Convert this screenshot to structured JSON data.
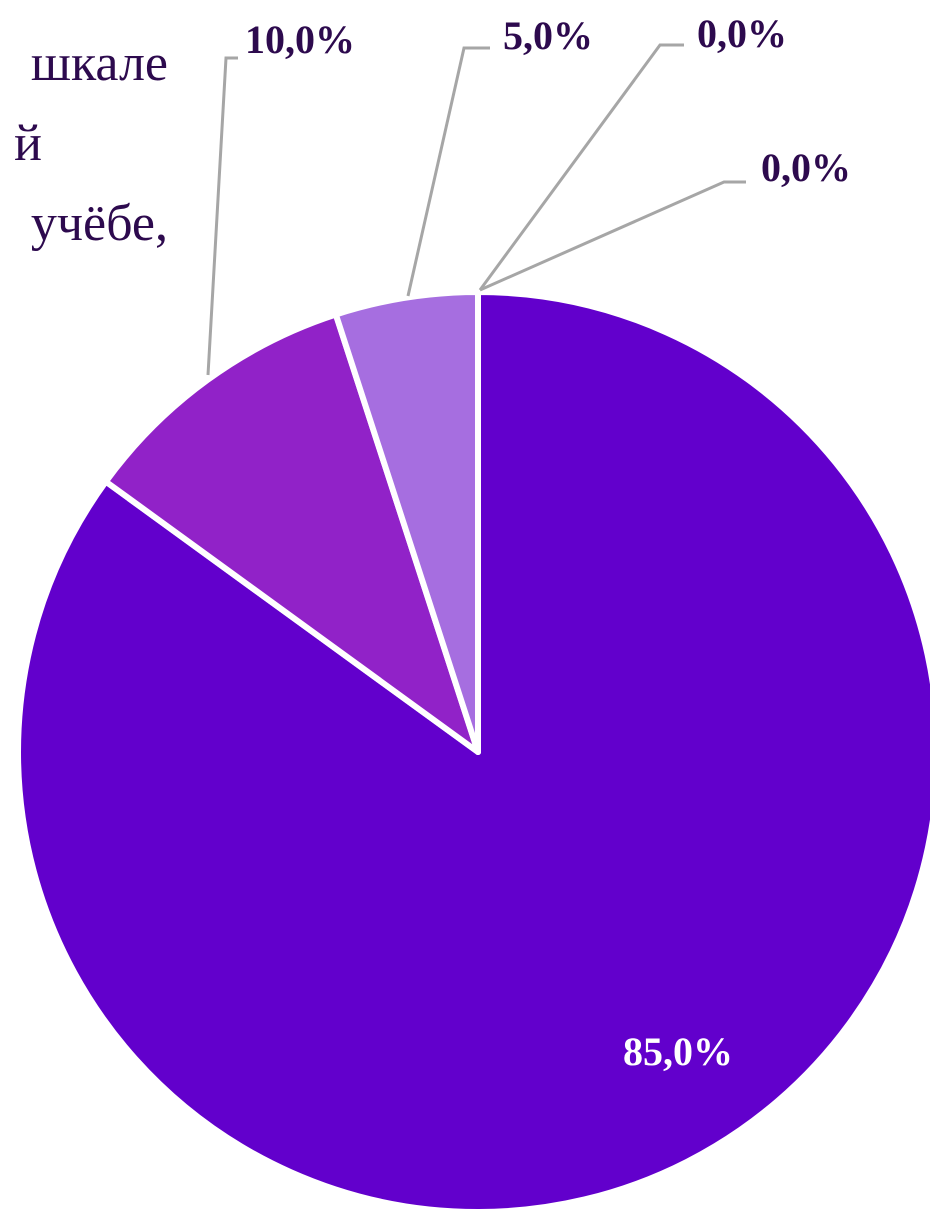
{
  "chart_data": {
    "type": "pie",
    "title_lines": [
      "шкале",
      "й",
      "учёбе,"
    ],
    "values": [
      85,
      10,
      5,
      0,
      0
    ],
    "value_labels": [
      "85,0%",
      "10,0%",
      "5,0%",
      "0,0%",
      "0,0%"
    ],
    "colors": [
      "#6200cc",
      "#9122c8",
      "#a66ee0",
      "#c9a6ef",
      "#e0ccf7"
    ]
  }
}
